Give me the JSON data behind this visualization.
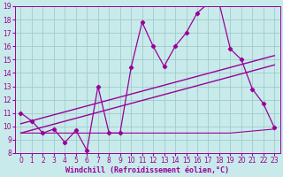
{
  "xlabel": "Windchill (Refroidissement éolien,°C)",
  "xlim": [
    -0.5,
    23.5
  ],
  "ylim": [
    8,
    19
  ],
  "yticks": [
    8,
    9,
    10,
    11,
    12,
    13,
    14,
    15,
    16,
    17,
    18,
    19
  ],
  "xticks": [
    0,
    1,
    2,
    3,
    4,
    5,
    6,
    7,
    8,
    9,
    10,
    11,
    12,
    13,
    14,
    15,
    16,
    17,
    18,
    19,
    20,
    21,
    22,
    23
  ],
  "bg_color": "#c8eaea",
  "line_color": "#990099",
  "series1_x": [
    0,
    1,
    2,
    3,
    4,
    5,
    6,
    7,
    8,
    9,
    10,
    11,
    12,
    13,
    14,
    15,
    16,
    17,
    18,
    19,
    20,
    21,
    22,
    23
  ],
  "series1_y": [
    11.0,
    10.4,
    9.5,
    9.8,
    8.8,
    9.7,
    8.2,
    13.0,
    9.5,
    9.5,
    14.4,
    17.8,
    16.0,
    14.5,
    16.0,
    17.0,
    18.5,
    19.2,
    19.2,
    15.8,
    15.0,
    12.8,
    11.7,
    9.9
  ],
  "series2_x": [
    0,
    23
  ],
  "series2_y": [
    10.2,
    15.3
  ],
  "series3_x": [
    0,
    23
  ],
  "series3_y": [
    9.5,
    14.6
  ],
  "series4_x": [
    0,
    19,
    23
  ],
  "series4_y": [
    9.5,
    9.5,
    9.8
  ],
  "grid_color": "#a0cccc",
  "tick_fontsize": 5.5,
  "xlabel_fontsize": 6.0
}
